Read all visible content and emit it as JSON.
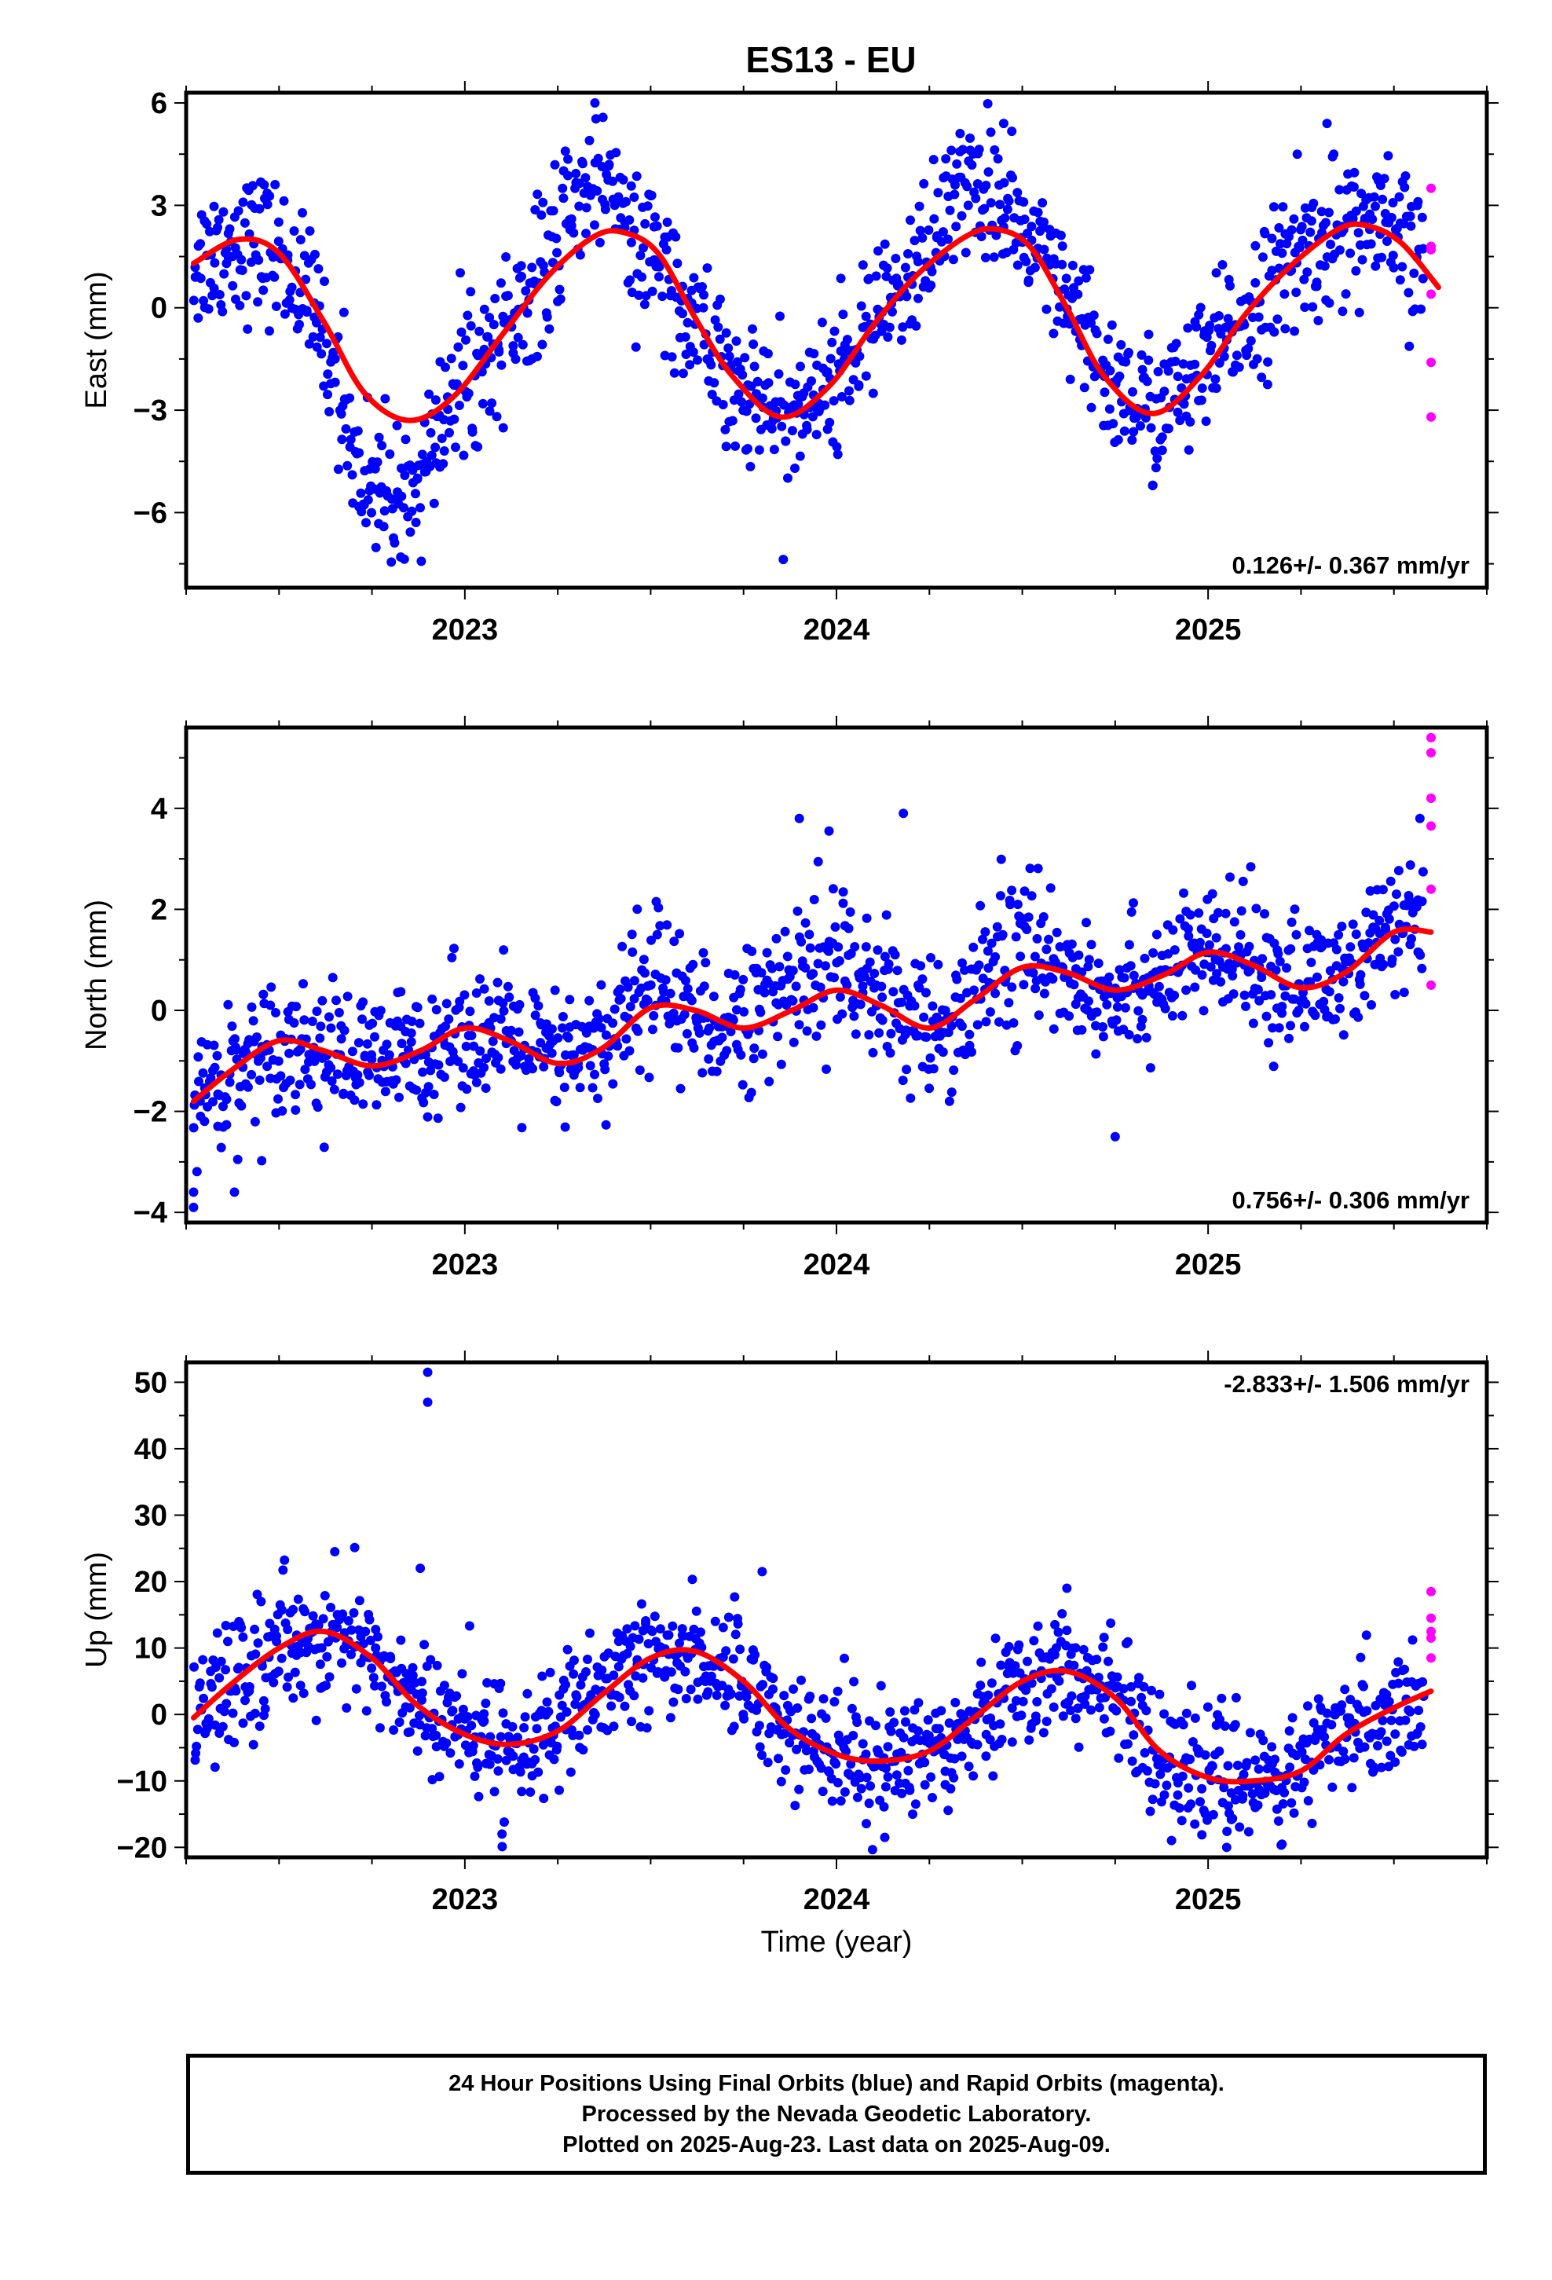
{
  "title": "ES13 - EU",
  "colors": {
    "final": "#0000ff",
    "rapid": "#ff00ff",
    "model": "#ff0000"
  },
  "footer": {
    "lines": [
      "24 Hour Positions Using Final Orbits (blue) and Rapid Orbits (magenta).",
      "Processed by the Nevada Geodetic Laboratory.",
      "Plotted on 2025-Aug-23. Last data on 2025-Aug-09."
    ]
  },
  "chart_data": [
    {
      "type": "scatter",
      "component": "east",
      "ylabel": "East (mm)",
      "xlabel": "",
      "xlim": [
        2022.25,
        2025.75
      ],
      "ylim": [
        -8.2,
        6.3
      ],
      "xticks": [
        "2023",
        "2024",
        "2025"
      ],
      "yticks": [
        -6,
        -3,
        0,
        3,
        6
      ],
      "yticklabels": [
        "−6",
        "−3",
        "0",
        "3",
        "6"
      ],
      "rate": "0.126+/- 0.367 mm/yr",
      "rate_position": "bottom-right",
      "model": {
        "x": [
          2022.27,
          2022.39,
          2022.5,
          2022.62,
          2022.73,
          2022.85,
          2022.97,
          2023.1,
          2023.23,
          2023.35,
          2023.43,
          2023.52,
          2023.62,
          2023.72,
          2023.85,
          2023.98,
          2024.1,
          2024.22,
          2024.35,
          2024.43,
          2024.52,
          2024.62,
          2024.72,
          2024.85,
          2024.98,
          2025.1,
          2025.22,
          2025.35,
          2025.43,
          2025.52,
          2025.62
        ],
        "y": [
          1.3,
          2.0,
          1.6,
          -0.4,
          -2.5,
          -3.3,
          -2.6,
          -0.8,
          1.0,
          2.1,
          2.2,
          1.6,
          -0.3,
          -2.0,
          -3.2,
          -2.3,
          -0.5,
          1.0,
          2.1,
          2.3,
          1.8,
          0.0,
          -2.0,
          -3.1,
          -2.0,
          -0.2,
          1.2,
          2.3,
          2.4,
          1.9,
          0.6
        ]
      },
      "seasonal": {
        "amp": 2.7,
        "phase": 2022.27,
        "noise": 1.05,
        "offset": 0
      },
      "anomalies": [
        {
          "x_from": 2022.6,
          "x_to": 2022.95,
          "dy": -2.7,
          "spread": 1.0
        },
        {
          "x_from": 2023.22,
          "x_to": 2023.42,
          "dy": 2.0,
          "spread": 0.9
        },
        {
          "x_from": 2024.2,
          "x_to": 2024.5,
          "dy": 1.4,
          "spread": 0.8
        }
      ],
      "outliers": [
        {
          "x": 2022.46,
          "y": 3.6
        },
        {
          "x": 2023.35,
          "y": 6.0
        },
        {
          "x": 2024.45,
          "y": 5.4
        },
        {
          "x": 2025.32,
          "y": 5.4
        },
        {
          "x": 2025.24,
          "y": 4.5
        }
      ],
      "rapid": {
        "x": 2025.6,
        "y": [
          3.5,
          1.8,
          1.7,
          0.4,
          -1.6,
          -3.2
        ]
      }
    },
    {
      "type": "scatter",
      "component": "north",
      "ylabel": "North (mm)",
      "xlabel": "",
      "xlim": [
        2022.25,
        2025.75
      ],
      "ylim": [
        -4.2,
        5.6
      ],
      "xticks": [
        "2023",
        "2024",
        "2025"
      ],
      "yticks": [
        -4,
        -2,
        0,
        2,
        4
      ],
      "yticklabels": [
        "−4",
        "−2",
        "0",
        "2",
        "4"
      ],
      "rate": "0.756+/- 0.306 mm/yr",
      "rate_position": "bottom-right",
      "model": {
        "x": [
          2022.27,
          2022.37,
          2022.5,
          2022.62,
          2022.75,
          2022.88,
          2023.0,
          2023.12,
          2023.25,
          2023.37,
          2023.5,
          2023.62,
          2023.75,
          2023.88,
          2024.0,
          2024.12,
          2024.25,
          2024.37,
          2024.5,
          2024.62,
          2024.75,
          2024.88,
          2025.0,
          2025.12,
          2025.25,
          2025.37,
          2025.5,
          2025.6
        ],
        "y": [
          -1.8,
          -1.2,
          -0.6,
          -0.8,
          -1.1,
          -0.8,
          -0.35,
          -0.6,
          -1.05,
          -0.75,
          0.05,
          0.0,
          -0.35,
          0.0,
          0.4,
          0.1,
          -0.35,
          0.2,
          0.85,
          0.75,
          0.4,
          0.7,
          1.15,
          0.9,
          0.45,
          0.75,
          1.55,
          1.55
        ]
      },
      "seasonal": {
        "amp": 0.45,
        "phase": 2022.4,
        "noise": 0.65,
        "offset": 0
      },
      "anomalies": [
        {
          "x_from": 2023.4,
          "x_to": 2023.6,
          "dy": 0.6,
          "spread": 0.8
        },
        {
          "x_from": 2023.75,
          "x_to": 2024.15,
          "dy": 0.5,
          "spread": 0.9
        },
        {
          "x_from": 2024.35,
          "x_to": 2024.65,
          "dy": 0.6,
          "spread": 0.9
        }
      ],
      "outliers": [
        {
          "x": 2022.27,
          "y": -3.9
        },
        {
          "x": 2022.27,
          "y": -3.6
        },
        {
          "x": 2022.38,
          "y": -3.6
        },
        {
          "x": 2023.9,
          "y": 3.8
        },
        {
          "x": 2023.98,
          "y": 3.55
        },
        {
          "x": 2024.18,
          "y": 3.9
        },
        {
          "x": 2025.57,
          "y": 3.8
        },
        {
          "x": 2024.75,
          "y": -2.5
        }
      ],
      "rapid": {
        "x": 2025.6,
        "y": [
          5.4,
          5.1,
          4.2,
          3.65,
          2.4,
          0.5
        ]
      }
    },
    {
      "type": "scatter",
      "component": "up",
      "ylabel": "Up (mm)",
      "xlabel": "Time (year)",
      "xlim": [
        2022.25,
        2025.75
      ],
      "ylim": [
        -21.5,
        53
      ],
      "xticks": [
        "2023",
        "2024",
        "2025"
      ],
      "yticks": [
        -20,
        -10,
        0,
        10,
        20,
        30,
        40,
        50
      ],
      "yticklabels": [
        "−20",
        "−10",
        "0",
        "10",
        "20",
        "30",
        "40",
        "50"
      ],
      "rate": "-2.833+/- 1.506 mm/yr",
      "rate_position": "top-right",
      "model": {
        "x": [
          2022.27,
          2022.37,
          2022.5,
          2022.62,
          2022.75,
          2022.87,
          2023.0,
          2023.12,
          2023.25,
          2023.37,
          2023.5,
          2023.62,
          2023.75,
          2023.87,
          2024.0,
          2024.12,
          2024.25,
          2024.37,
          2024.5,
          2024.62,
          2024.75,
          2024.87,
          2025.0,
          2025.12,
          2025.25,
          2025.37,
          2025.5,
          2025.6
        ],
        "y": [
          -0.5,
          4.5,
          10.0,
          12.5,
          8.5,
          1.5,
          -3.0,
          -4.5,
          -2.5,
          3.0,
          8.5,
          9.5,
          5.0,
          -2.0,
          -6.0,
          -7.0,
          -5.5,
          -0.5,
          5.0,
          6.5,
          2.5,
          -5.5,
          -9.5,
          -10.0,
          -8.5,
          -3.0,
          1.0,
          3.5
        ]
      },
      "seasonal": {
        "amp": 0,
        "phase": 0,
        "noise": 4.6,
        "offset": 0
      },
      "anomalies": [],
      "outliers": [
        {
          "x": 2022.9,
          "y": 51.5
        },
        {
          "x": 2022.9,
          "y": 47.0
        },
        {
          "x": 2022.88,
          "y": 22.0
        },
        {
          "x": 2022.65,
          "y": 24.5
        },
        {
          "x": 2023.1,
          "y": -18.0
        },
        {
          "x": 2023.8,
          "y": 21.5
        },
        {
          "x": 2024.13,
          "y": -18.5
        },
        {
          "x": 2024.62,
          "y": 19.0
        },
        {
          "x": 2025.05,
          "y": -20.0
        }
      ],
      "rapid": {
        "x": 2025.6,
        "y": [
          18.5,
          14.5,
          12.5,
          11.5,
          8.5
        ]
      }
    }
  ]
}
